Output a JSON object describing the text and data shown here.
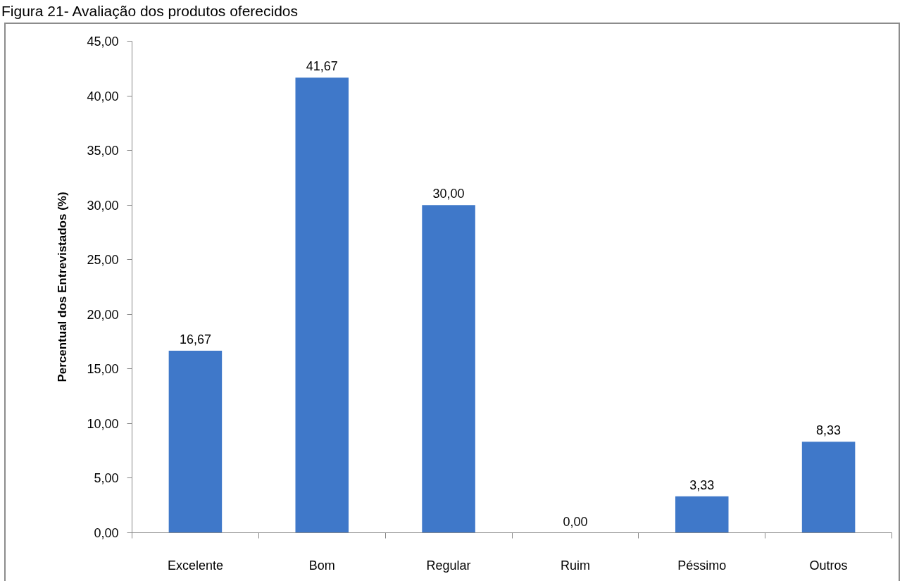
{
  "chart_data": {
    "type": "bar",
    "title": "Figura 21- Avaliação dos produtos oferecidos",
    "ylabel": "Percentual dos Entrevistados (%)",
    "categories": [
      "Excelente",
      "Bom",
      "Regular",
      "Ruim",
      "Péssimo",
      "Outros"
    ],
    "values": [
      16.67,
      41.67,
      30.0,
      0.0,
      3.33,
      8.33
    ],
    "value_labels": [
      "16,67",
      "41,67",
      "30,00",
      "0,00",
      "3,33",
      "8,33"
    ],
    "color": "#3f78c9",
    "ylim": [
      0,
      45
    ],
    "yticks": [
      {
        "value": 0,
        "label": "0,00"
      },
      {
        "value": 5,
        "label": "5,00"
      },
      {
        "value": 10,
        "label": "10,00"
      },
      {
        "value": 15,
        "label": "15,00"
      },
      {
        "value": 20,
        "label": "20,00"
      },
      {
        "value": 25,
        "label": "25,00"
      },
      {
        "value": 30,
        "label": "30,00"
      },
      {
        "value": 35,
        "label": "35,00"
      },
      {
        "value": 40,
        "label": "40,00"
      },
      {
        "value": 45,
        "label": "45,00"
      }
    ],
    "grid": false
  }
}
